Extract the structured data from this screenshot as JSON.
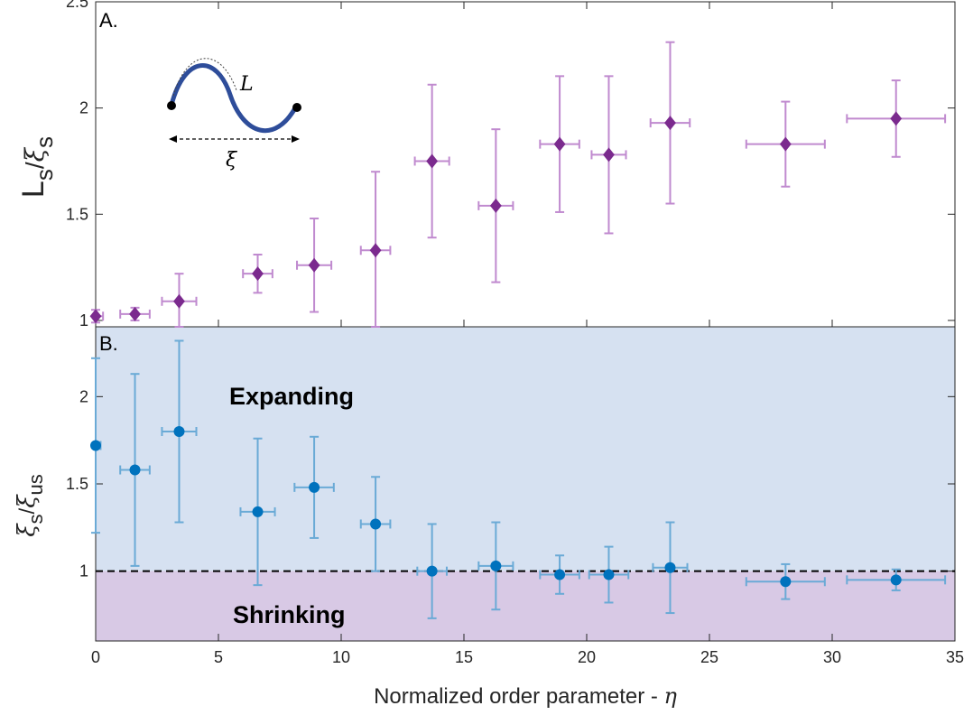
{
  "chart_data": [
    {
      "type": "scatter",
      "panel_label": "A.",
      "ylabel": "L_s/ξ_s",
      "ylim": [
        0.97,
        2.5
      ],
      "yticks": [
        "1",
        "1.5",
        "2",
        "2.5"
      ],
      "xlim": [
        0,
        35
      ],
      "color": "#7B2A8E",
      "errcolor": "#C08ACF",
      "marker": "diamond",
      "inset": {
        "length_label": "L",
        "distance_label": "ξ"
      },
      "points": [
        {
          "x": 0.0,
          "y": 1.02,
          "xerr": 0.3,
          "yerr": 0.03
        },
        {
          "x": 1.6,
          "y": 1.03,
          "xerr": 0.6,
          "yerr": 0.03
        },
        {
          "x": 3.4,
          "y": 1.09,
          "xerr": 0.7,
          "yerr": 0.13
        },
        {
          "x": 6.6,
          "y": 1.22,
          "xerr": 0.6,
          "yerr": 0.09
        },
        {
          "x": 8.9,
          "y": 1.26,
          "xerr": 0.7,
          "yerr": 0.22
        },
        {
          "x": 11.4,
          "y": 1.33,
          "xerr": 0.6,
          "yerr": 0.37
        },
        {
          "x": 13.7,
          "y": 1.75,
          "xerr": 0.7,
          "yerr": 0.36
        },
        {
          "x": 16.3,
          "y": 1.54,
          "xerr": 0.7,
          "yerr": 0.36
        },
        {
          "x": 18.9,
          "y": 1.83,
          "xerr": 0.8,
          "yerr": 0.32
        },
        {
          "x": 20.9,
          "y": 1.78,
          "xerr": 0.7,
          "yerr": 0.37
        },
        {
          "x": 23.4,
          "y": 1.93,
          "xerr": 0.8,
          "yerr": 0.38
        },
        {
          "x": 28.1,
          "y": 1.83,
          "xerr": 1.6,
          "yerr": 0.2
        },
        {
          "x": 32.6,
          "y": 1.95,
          "xerr": 2.0,
          "yerr": 0.18
        }
      ]
    },
    {
      "type": "scatter",
      "panel_label": "B.",
      "ylabel": "ξ_s/ξ_us",
      "xlabel": "Normalized order parameter - η",
      "ylim": [
        0.6,
        2.4
      ],
      "yticks": [
        "1",
        "1.5",
        "2"
      ],
      "xlim": [
        0,
        35
      ],
      "xticks": [
        "0",
        "5",
        "10",
        "15",
        "20",
        "25",
        "30",
        "35"
      ],
      "color": "#0072BD",
      "errcolor": "#6AAAD6",
      "marker": "circle",
      "reference_line": 1,
      "regions": [
        {
          "label": "Expanding",
          "from": 1,
          "to": 2.4,
          "color": "#D6E1F1"
        },
        {
          "label": "Shrinking",
          "from": 0.6,
          "to": 1,
          "color": "#D8C9E5"
        }
      ],
      "points": [
        {
          "x": 0.0,
          "y": 1.72,
          "xerr": 0.2,
          "yerr": 0.5
        },
        {
          "x": 1.6,
          "y": 1.58,
          "xerr": 0.6,
          "yerr": 0.55
        },
        {
          "x": 3.4,
          "y": 1.8,
          "xerr": 0.7,
          "yerr": 0.52
        },
        {
          "x": 6.6,
          "y": 1.34,
          "xerr": 0.7,
          "yerr": 0.42
        },
        {
          "x": 8.9,
          "y": 1.48,
          "xerr": 0.8,
          "yerr": 0.29
        },
        {
          "x": 11.4,
          "y": 1.27,
          "xerr": 0.6,
          "yerr": 0.27
        },
        {
          "x": 13.7,
          "y": 1.0,
          "xerr": 0.6,
          "yerr": 0.27
        },
        {
          "x": 16.3,
          "y": 1.03,
          "xerr": 0.7,
          "yerr": 0.25
        },
        {
          "x": 18.9,
          "y": 0.98,
          "xerr": 0.8,
          "yerr": 0.11
        },
        {
          "x": 20.9,
          "y": 0.98,
          "xerr": 0.8,
          "yerr": 0.16
        },
        {
          "x": 23.4,
          "y": 1.02,
          "xerr": 0.7,
          "yerr": 0.26
        },
        {
          "x": 28.1,
          "y": 0.94,
          "xerr": 1.6,
          "yerr": 0.1
        },
        {
          "x": 32.6,
          "y": 0.95,
          "xerr": 2.0,
          "yerr": 0.06
        }
      ]
    }
  ]
}
